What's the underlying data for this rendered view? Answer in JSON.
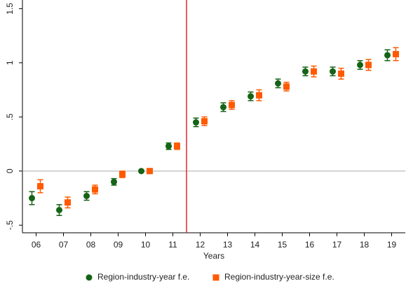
{
  "chart_data": {
    "type": "errorbar",
    "x_label": "Years",
    "categories": [
      "06",
      "07",
      "08",
      "09",
      "10",
      "11",
      "12",
      "13",
      "14",
      "15",
      "16",
      "17",
      "18",
      "19"
    ],
    "series": [
      {
        "name": "Region-industry-year f.e.",
        "color": "#156315",
        "marker": "circle",
        "values": [
          -0.25,
          -0.36,
          -0.23,
          -0.1,
          0,
          0.23,
          0.45,
          0.59,
          0.69,
          0.81,
          0.92,
          0.92,
          0.98,
          1.07
        ],
        "errors": [
          0.06,
          0.05,
          0.04,
          0.03,
          0,
          0.03,
          0.04,
          0.04,
          0.04,
          0.04,
          0.04,
          0.04,
          0.04,
          0.05
        ]
      },
      {
        "name": "Region-industry-year-size f.e.",
        "color": "#ff5a00",
        "marker": "square",
        "values": [
          -0.14,
          -0.29,
          -0.17,
          -0.03,
          0,
          0.23,
          0.46,
          0.61,
          0.7,
          0.78,
          0.92,
          0.9,
          0.98,
          1.08
        ],
        "errors": [
          0.06,
          0.05,
          0.04,
          0.03,
          0,
          0.03,
          0.04,
          0.04,
          0.05,
          0.04,
          0.05,
          0.05,
          0.05,
          0.06
        ]
      }
    ],
    "ylim": [
      -0.57,
      1.58
    ],
    "yticks": [
      {
        "value": -0.5,
        "label": "-.5"
      },
      0,
      {
        "value": 0.5,
        "label": ".5"
      },
      1,
      1.5
    ]
  }
}
